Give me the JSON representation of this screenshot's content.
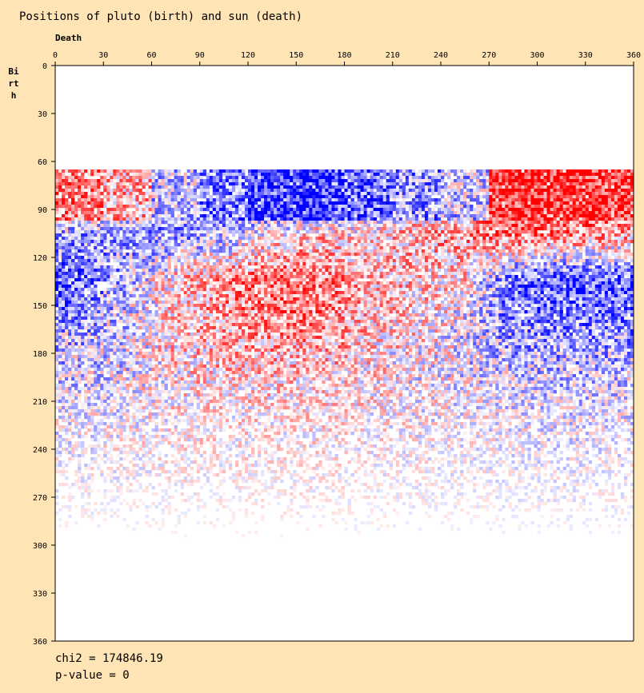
{
  "chart_data": {
    "type": "heatmap",
    "title": "Positions of pluto (birth) and sun (death)",
    "xlabel": "Death",
    "ylabel": "Birth",
    "xlim": [
      0,
      360
    ],
    "ylim": [
      0,
      360
    ],
    "y_inverted": true,
    "xticks": [
      0,
      30,
      60,
      90,
      120,
      150,
      180,
      210,
      240,
      270,
      300,
      330,
      360
    ],
    "yticks": [
      0,
      30,
      60,
      90,
      120,
      150,
      180,
      210,
      240,
      270,
      300,
      330,
      360
    ],
    "colors": {
      "positive": "#ff0000",
      "negative": "#0000ff",
      "zero": "#ffffff",
      "background": "#ffe4b5"
    },
    "value_meaning": "signed residual, red positive, blue negative",
    "bin_size_deg": 30,
    "x_bins": [
      "0-30",
      "30-60",
      "60-90",
      "90-120",
      "120-150",
      "150-180",
      "180-210",
      "210-240",
      "240-270",
      "270-300",
      "300-330",
      "330-360"
    ],
    "y_bins": [
      "0-30",
      "30-60",
      "60-90",
      "90-120",
      "120-150",
      "150-180",
      "180-210",
      "210-240",
      "240-270",
      "270-300",
      "300-330",
      "330-360"
    ],
    "data_birth_range": [
      65,
      302
    ],
    "values": [
      [
        null,
        null,
        null,
        null,
        null,
        null,
        null,
        null,
        null,
        null,
        null,
        null
      ],
      [
        null,
        null,
        null,
        null,
        null,
        null,
        null,
        null,
        null,
        null,
        null,
        null
      ],
      [
        0.5,
        0.3,
        -0.2,
        -0.5,
        -0.8,
        -0.8,
        -0.6,
        -0.4,
        -0.2,
        0.8,
        0.8,
        0.8
      ],
      [
        -0.3,
        -0.4,
        -0.4,
        -0.3,
        0.0,
        0.2,
        0.1,
        0.3,
        0.4,
        0.6,
        0.5,
        0.4
      ],
      [
        -0.6,
        -0.2,
        0.2,
        0.4,
        0.6,
        0.5,
        0.3,
        0.2,
        0.1,
        -0.6,
        -0.7,
        -0.7
      ],
      [
        -0.3,
        -0.1,
        0.2,
        0.3,
        0.4,
        0.4,
        0.2,
        0.1,
        -0.1,
        -0.4,
        -0.4,
        -0.4
      ],
      [
        -0.15,
        -0.05,
        0.1,
        0.15,
        0.15,
        0.15,
        0.1,
        0.0,
        -0.05,
        -0.15,
        -0.2,
        -0.15
      ],
      [
        -0.05,
        0.0,
        0.05,
        0.08,
        0.08,
        0.08,
        0.05,
        0.03,
        0.0,
        -0.05,
        -0.08,
        -0.05
      ],
      [
        -0.02,
        0.0,
        0.03,
        0.04,
        0.04,
        0.04,
        0.02,
        0.0,
        0.0,
        -0.03,
        -0.04,
        -0.02
      ],
      [
        0.0,
        0.0,
        0.01,
        0.02,
        0.02,
        0.02,
        0.0,
        0.0,
        0.0,
        -0.01,
        -0.02,
        0.0
      ],
      [
        null,
        null,
        null,
        null,
        null,
        null,
        null,
        null,
        null,
        null,
        null,
        null
      ],
      [
        null,
        null,
        null,
        null,
        null,
        null,
        null,
        null,
        null,
        null,
        null,
        null
      ]
    ],
    "stats": {
      "chi2_label": "chi2 = 174846.19",
      "pvalue_label": "p-value = 0"
    }
  }
}
